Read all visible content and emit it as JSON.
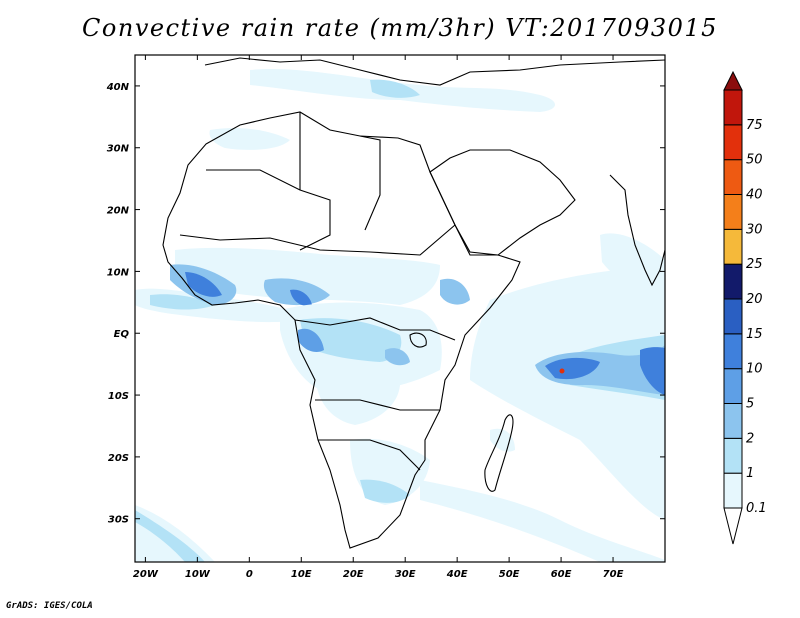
{
  "title": "Convective rain rate (mm/3hr) VT:2017093015",
  "credit": "GrADS: IGES/COLA",
  "map": {
    "lon_range": [
      -22,
      80
    ],
    "lat_range": [
      -37,
      45
    ],
    "lon_ticks": [
      {
        "value": -20,
        "label": "20W"
      },
      {
        "value": -10,
        "label": "10W"
      },
      {
        "value": 0,
        "label": "0"
      },
      {
        "value": 10,
        "label": "10E"
      },
      {
        "value": 20,
        "label": "20E"
      },
      {
        "value": 30,
        "label": "30E"
      },
      {
        "value": 40,
        "label": "40E"
      },
      {
        "value": 50,
        "label": "50E"
      },
      {
        "value": 60,
        "label": "60E"
      },
      {
        "value": 70,
        "label": "70E"
      }
    ],
    "lat_ticks": [
      {
        "value": 40,
        "label": "40N"
      },
      {
        "value": 30,
        "label": "30N"
      },
      {
        "value": 20,
        "label": "20N"
      },
      {
        "value": 10,
        "label": "10N"
      },
      {
        "value": 0,
        "label": "EQ"
      },
      {
        "value": -10,
        "label": "10S"
      },
      {
        "value": -20,
        "label": "20S"
      },
      {
        "value": -30,
        "label": "30S"
      }
    ]
  },
  "colorbar": {
    "levels": [
      {
        "label": "0.1",
        "color": "#e6f7fd"
      },
      {
        "label": "1",
        "color": "#b3e2f6"
      },
      {
        "label": "2",
        "color": "#8cc4ee"
      },
      {
        "label": "5",
        "color": "#5e9fe6"
      },
      {
        "label": "10",
        "color": "#3f80dc"
      },
      {
        "label": "15",
        "color": "#2a5fc2"
      },
      {
        "label": "20",
        "color": "#121a6a"
      },
      {
        "label": "25",
        "color": "#f5b93a"
      },
      {
        "label": "30",
        "color": "#f47f1a"
      },
      {
        "label": "40",
        "color": "#ee5a12"
      },
      {
        "label": "50",
        "color": "#e2300c"
      },
      {
        "label": "75",
        "color": "#c1160c"
      }
    ],
    "top_color": "#8b0d0d"
  }
}
